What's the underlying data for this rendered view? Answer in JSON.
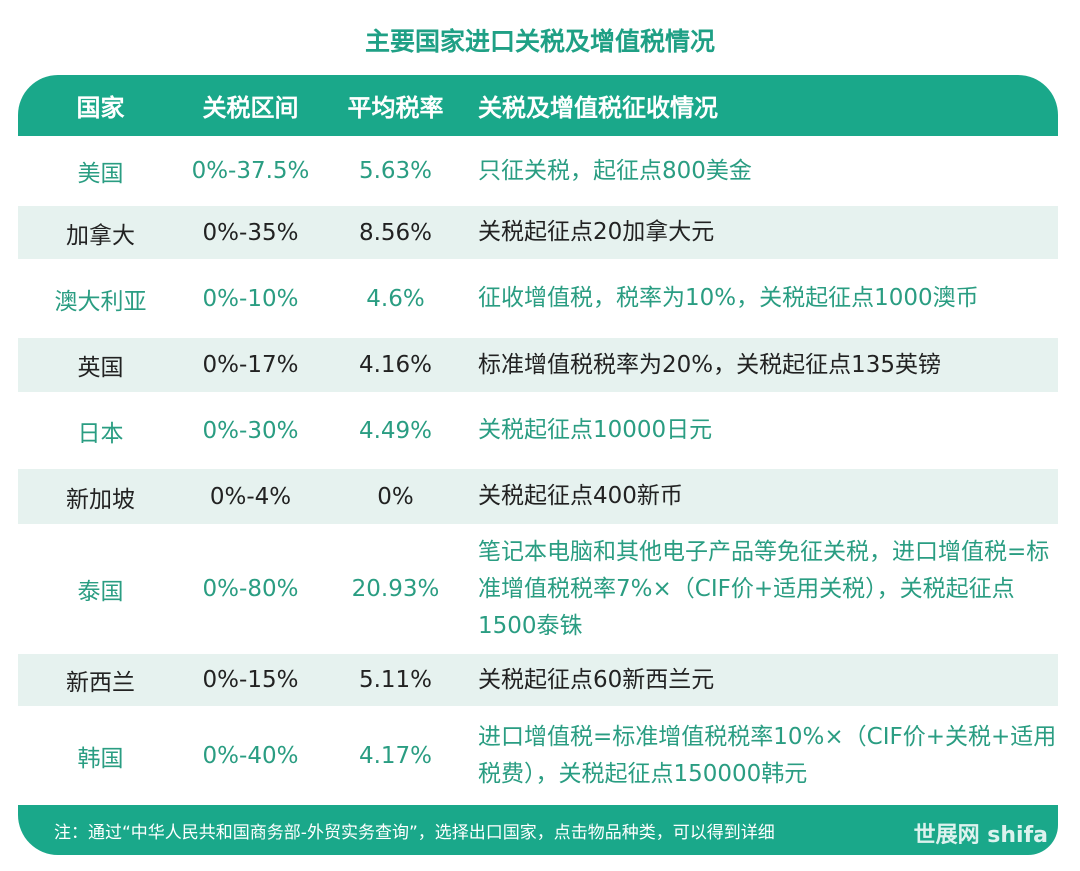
{
  "title": "主要国家进口关税及增值税情况",
  "headers": [
    "国家",
    "关税区间",
    "平均税率",
    "关税及增值税征收情况"
  ],
  "rows": [
    {
      "country": "美国",
      "range": "0%-37.5%",
      "avg": "5.63%",
      "detail": "只征关税，起征点800美金"
    },
    {
      "country": "加拿大",
      "range": "0%-35%",
      "avg": "8.56%",
      "detail": "关税起征点20加拿大元"
    },
    {
      "country": "澳大利亚",
      "range": "0%-10%",
      "avg": "4.6%",
      "detail": "征收增值税，税率为10%，关税起征点1000澳币"
    },
    {
      "country": "英国",
      "range": "0%-17%",
      "avg": "4.16%",
      "detail": "标准增值税税率为20%，关税起征点135英镑"
    },
    {
      "country": "日本",
      "range": "0%-30%",
      "avg": "4.49%",
      "detail": "关税起征点10000日元"
    },
    {
      "country": "新加坡",
      "range": "0%-4%",
      "avg": "0%",
      "detail": "关税起征点400新币"
    },
    {
      "country": "泰国",
      "range": "0%-80%",
      "avg": "20.93%",
      "detail": "笔记本电脑和其他电子产品等免征关税，进口增值税=标准增值税税率7%×（CIF价+适用关税），关税起征点1500泰铢"
    },
    {
      "country": "新西兰",
      "range": "0%-15%",
      "avg": "5.11%",
      "detail": "关税起征点60新西兰元"
    },
    {
      "country": "韩国",
      "range": "0%-40%",
      "avg": "4.17%",
      "detail": "进口增值税=标准增值税税率10%×（CIF价+关税+适用税费），关税起征点150000韩元"
    }
  ],
  "footer_note": "注：通过“中华人民共和国商务部-外贸实务查询”，选择出口国家，点击物品种类，可以得到详细",
  "watermark": "世展网 shifa",
  "colors": {
    "accent": "#1aa88a",
    "stripe": "#e6f2ef",
    "green_text": "#2a9d82"
  }
}
